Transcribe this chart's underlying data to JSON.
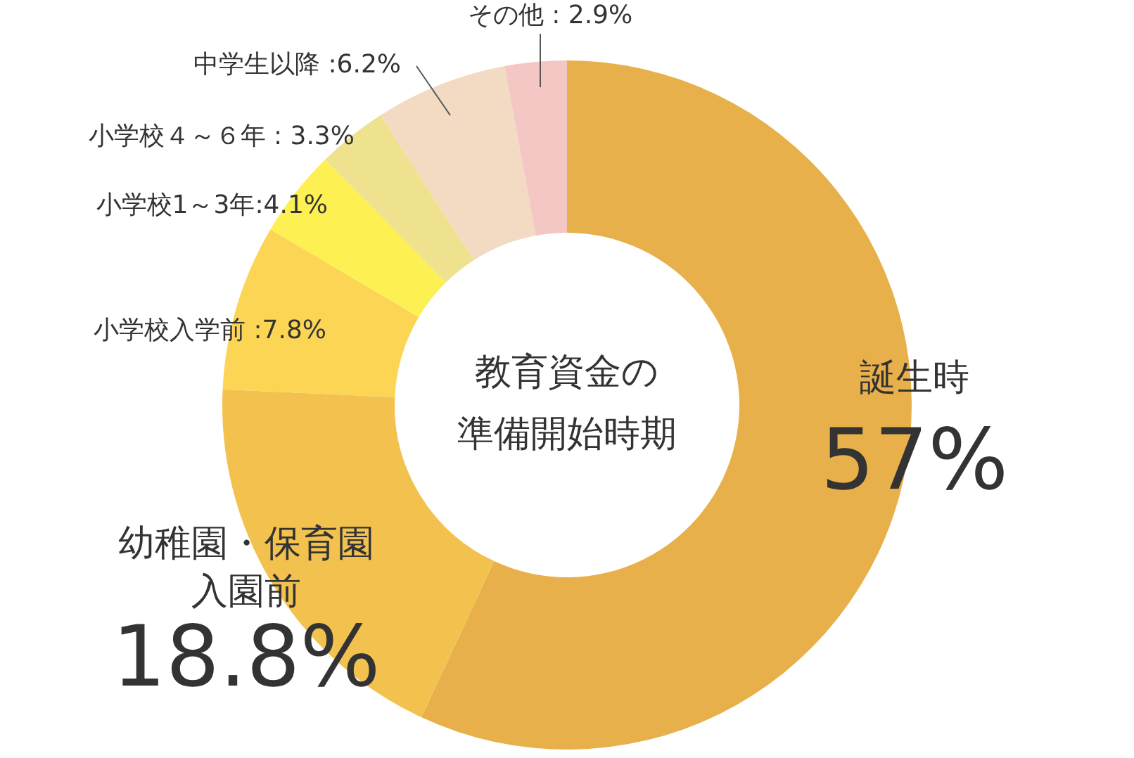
{
  "chart_data": {
    "type": "donut",
    "title": "教育資金の準備開始時期",
    "categories": [
      "誕生時",
      "幼稚園・保育園入園前",
      "小学校入学前",
      "小学校1～3年",
      "小学校４～６年",
      "中学生以降",
      "その他"
    ],
    "values": [
      57,
      18.8,
      7.8,
      4.1,
      3.3,
      6.2,
      2.9
    ],
    "colors": [
      "#e8b04a",
      "#f3c24e",
      "#fbd553",
      "#fdf052",
      "#efe28e",
      "#f2dbc2",
      "#f4c6c4"
    ],
    "value_labels": [
      "57%",
      "18.8%",
      " :7.8%",
      ":4.1%",
      " : 3.3%",
      " :6.2%",
      " : 2.9%"
    ]
  }
}
